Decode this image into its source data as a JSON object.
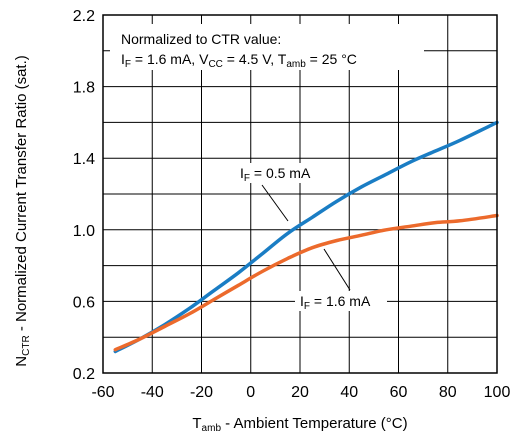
{
  "chart_data": {
    "type": "line",
    "title": "",
    "xlabel": {
      "main": "T",
      "sub": "amb",
      "rest": " - Ambient Temperature (°C)"
    },
    "ylabel": {
      "main": "N",
      "sub": "CTR",
      "rest": " - Normalized Current Transfer Ratio (sat.)"
    },
    "xlim": [
      -60,
      100
    ],
    "ylim": [
      0.2,
      2.2
    ],
    "x_ticks": [
      "-60",
      "-40",
      "-20",
      "0",
      "20",
      "40",
      "60",
      "80",
      "100"
    ],
    "y_ticks": [
      "0.2",
      "0.6",
      "1.0",
      "1.4",
      "1.8",
      "2.2"
    ],
    "grid": true,
    "note": {
      "line1": "Normalized to CTR value:",
      "i_main": "I",
      "i_sub": "F",
      "i_val": " = 1.6 mA, V",
      "v_sub": "CC",
      "v_val": " = 4.5 V, T",
      "t_sub": "amb",
      "t_val": " = 25 °C"
    },
    "series": [
      {
        "name": "I_F = 0.5 mA",
        "label": {
          "main": "I",
          "sub": "F",
          "rest": " = 0.5 mA"
        },
        "color": "#1a7dc4",
        "x": [
          -55,
          -45,
          -35,
          -25,
          -15,
          -5,
          5,
          15,
          25,
          35,
          45,
          55,
          65,
          75,
          85,
          100
        ],
        "y": [
          0.32,
          0.39,
          0.47,
          0.56,
          0.66,
          0.76,
          0.87,
          0.98,
          1.07,
          1.16,
          1.24,
          1.31,
          1.38,
          1.44,
          1.5,
          1.6
        ]
      },
      {
        "name": "I_F = 1.6 mA",
        "label": {
          "main": "I",
          "sub": "F",
          "rest": " = 1.6 mA"
        },
        "color": "#ec6a2c",
        "x": [
          -55,
          -45,
          -35,
          -25,
          -15,
          -5,
          5,
          15,
          25,
          35,
          45,
          55,
          65,
          75,
          85,
          100
        ],
        "y": [
          0.33,
          0.39,
          0.46,
          0.53,
          0.61,
          0.69,
          0.77,
          0.84,
          0.9,
          0.94,
          0.97,
          1.0,
          1.02,
          1.04,
          1.05,
          1.08
        ]
      }
    ]
  }
}
